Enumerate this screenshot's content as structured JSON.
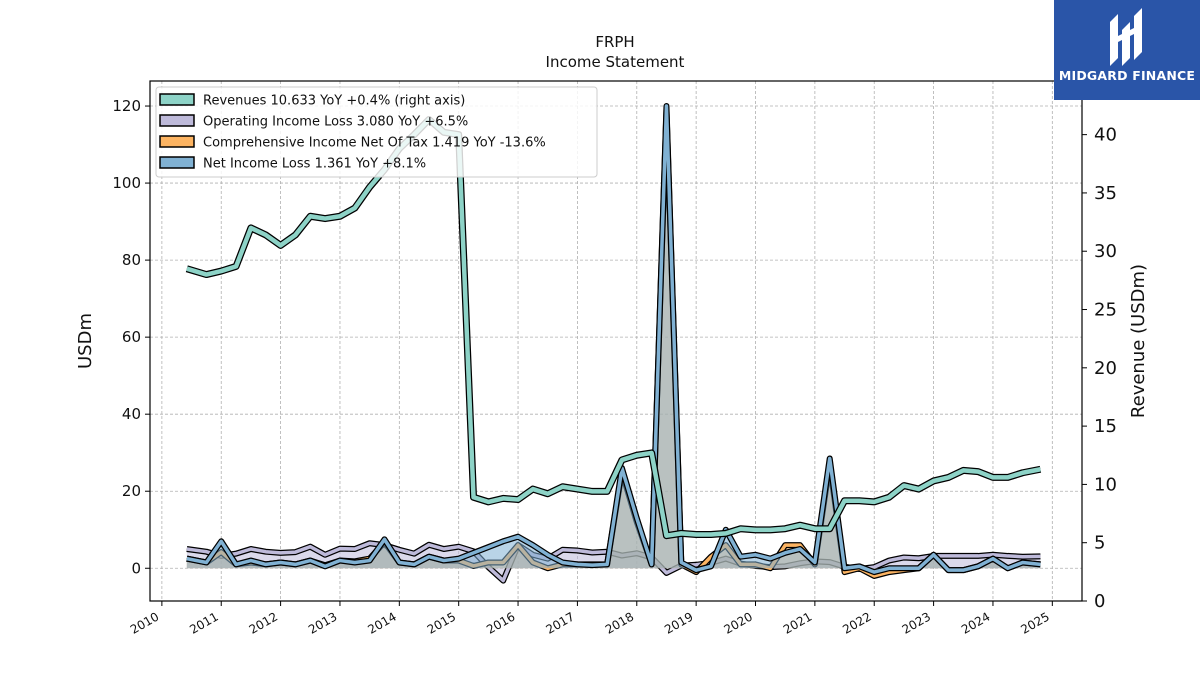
{
  "chart_data": {
    "type": "line",
    "title": "FRPH",
    "subtitle": "Income Statement",
    "ylabel": "USDm",
    "ylabel_right": "Revenue (USDm)",
    "ylim": [
      -8.5,
      126.5
    ],
    "ylim_right": [
      0,
      44.6
    ],
    "y_ticks": [
      0,
      20,
      40,
      60,
      80,
      100,
      120
    ],
    "y_ticks_right": [
      0,
      5,
      10,
      15,
      20,
      25,
      30,
      35,
      40
    ],
    "x_ticks": [
      "2010",
      "2011",
      "2012",
      "2013",
      "2014",
      "2015",
      "2016",
      "2017",
      "2018",
      "2019",
      "2020",
      "2021",
      "2022",
      "2023",
      "2024",
      "2025"
    ],
    "x_range": [
      2009.8,
      2025.5
    ],
    "grid": true,
    "legend_position": "top-left",
    "series": [
      {
        "name": "Revenues",
        "legend_label": "Revenues  10.633 YoY +0.4% (right axis)",
        "axis": "right",
        "color": "#8dd3c7",
        "kind": "line",
        "x": [
          2010.42,
          2010.75,
          2011.0,
          2011.25,
          2011.5,
          2011.75,
          2012.0,
          2012.25,
          2012.5,
          2012.75,
          2013.0,
          2013.25,
          2013.5,
          2013.75,
          2014.0,
          2014.25,
          2014.5,
          2014.75,
          2015.0,
          2015.25,
          2015.5,
          2015.75,
          2016.0,
          2016.25,
          2016.5,
          2016.75,
          2017.0,
          2017.25,
          2017.5,
          2017.75,
          2018.0,
          2018.25,
          2018.5,
          2018.75,
          2019.0,
          2019.25,
          2019.5,
          2019.75,
          2020.0,
          2020.25,
          2020.5,
          2020.75,
          2021.0,
          2021.25,
          2021.5,
          2021.75,
          2022.0,
          2022.25,
          2022.5,
          2022.75,
          2023.0,
          2023.25,
          2023.5,
          2023.75,
          2024.0,
          2024.25,
          2024.5,
          2024.8
        ],
        "values": [
          28.5,
          28.0,
          28.3,
          28.7,
          32.0,
          31.4,
          30.5,
          31.4,
          33.0,
          32.8,
          33.0,
          33.7,
          35.5,
          37.0,
          38.8,
          40.0,
          41.3,
          40.2,
          40.0,
          8.9,
          8.5,
          8.8,
          8.7,
          9.6,
          9.2,
          9.8,
          9.6,
          9.4,
          9.4,
          12.1,
          12.5,
          12.7,
          5.6,
          5.8,
          5.7,
          5.7,
          5.8,
          6.2,
          6.1,
          6.1,
          6.2,
          6.5,
          6.2,
          6.2,
          8.6,
          8.6,
          8.5,
          8.9,
          9.9,
          9.6,
          10.3,
          10.6,
          11.2,
          11.1,
          10.6,
          10.6,
          11.0,
          11.3
        ]
      },
      {
        "name": "Operating Income Loss",
        "legend_label": "Operating Income Loss  3.080 YoY +6.5%",
        "axis": "left",
        "color": "#bebada",
        "kind": "band",
        "x": [
          2010.42,
          2010.75,
          2011.0,
          2011.25,
          2011.5,
          2011.75,
          2012.0,
          2012.25,
          2012.5,
          2012.75,
          2013.0,
          2013.25,
          2013.5,
          2013.75,
          2014.0,
          2014.25,
          2014.5,
          2014.75,
          2015.0,
          2015.25,
          2015.5,
          2015.75,
          2016.0,
          2016.25,
          2016.5,
          2016.75,
          2017.0,
          2017.25,
          2017.5,
          2017.75,
          2018.0,
          2018.25,
          2018.5,
          2018.75,
          2019.0,
          2019.25,
          2019.5,
          2019.75,
          2020.0,
          2020.25,
          2020.5,
          2020.75,
          2021.0,
          2021.25,
          2021.5,
          2021.75,
          2022.0,
          2022.25,
          2022.5,
          2022.75,
          2023.0,
          2023.25,
          2023.5,
          2023.75,
          2024.0,
          2024.25,
          2024.5,
          2024.8
        ],
        "values": [
          5.0,
          4.3,
          3.2,
          3.8,
          5.0,
          4.3,
          4.0,
          4.2,
          5.6,
          3.5,
          5.1,
          5.0,
          6.5,
          6.0,
          4.8,
          3.8,
          6.1,
          5.0,
          5.6,
          4.4,
          0.3,
          -3.2,
          6.0,
          3.5,
          2.5,
          4.8,
          4.6,
          4.1,
          4.3,
          3.3,
          3.9,
          2.8,
          -1.2,
          0.7,
          0.9,
          1.4,
          2.5,
          1.2,
          0.6,
          0.3,
          0.5,
          1.3,
          1.8,
          1.6,
          0.4,
          -0.2,
          0.3,
          2.0,
          2.8,
          2.6,
          3.2,
          3.2,
          3.2,
          3.2,
          3.5,
          3.2,
          3.0,
          3.1
        ]
      },
      {
        "name": "Comprehensive Income Net Of Tax",
        "legend_label": "Comprehensive Income Net Of Tax  1.419 YoY -13.6%",
        "axis": "left",
        "color": "#fdb462",
        "kind": "band",
        "x": [
          2010.42,
          2010.75,
          2011.0,
          2011.25,
          2011.5,
          2011.75,
          2012.0,
          2012.25,
          2012.5,
          2012.75,
          2013.0,
          2013.25,
          2013.5,
          2013.75,
          2014.0,
          2014.25,
          2014.5,
          2014.75,
          2015.0,
          2015.25,
          2015.5,
          2015.75,
          2016.0,
          2016.25,
          2016.5,
          2016.75,
          2017.0,
          2017.25,
          2017.5,
          2017.75,
          2018.0,
          2018.25,
          2018.5,
          2018.75,
          2019.0,
          2019.25,
          2019.5,
          2019.75,
          2020.0,
          2020.25,
          2020.5,
          2020.75,
          2021.0,
          2021.25,
          2021.5,
          2021.75,
          2022.0,
          2022.25,
          2022.5,
          2022.75,
          2023.0,
          2023.25,
          2023.5,
          2023.75,
          2024.0,
          2024.25,
          2024.5,
          2024.8
        ],
        "values": [
          2.5,
          1.5,
          4.2,
          1.0,
          1.5,
          1.0,
          1.5,
          1.0,
          2.0,
          0.8,
          2.0,
          1.8,
          2.5,
          6.8,
          1.5,
          1.0,
          3.0,
          2.0,
          2.0,
          0.6,
          1.5,
          1.5,
          6.0,
          1.5,
          0.0,
          1.0,
          1.0,
          1.0,
          1.0,
          25.0,
          12.0,
          1.0,
          119.0,
          1.0,
          -1.0,
          3.0,
          6.0,
          1.0,
          1.0,
          0.0,
          6.0,
          6.0,
          1.0,
          27.0,
          -1.0,
          0.0,
          -2.0,
          -1.0,
          -0.5,
          0.0,
          3.5,
          -0.5,
          -0.5,
          0.5,
          2.5,
          0.0,
          1.5,
          1.0
        ]
      },
      {
        "name": "Net Income Loss",
        "legend_label": "Net Income Loss  1.361 YoY +8.1%",
        "axis": "left",
        "color": "#80b1d3",
        "kind": "band",
        "x": [
          2010.42,
          2010.75,
          2011.0,
          2011.25,
          2011.5,
          2011.75,
          2012.0,
          2012.25,
          2012.5,
          2012.75,
          2013.0,
          2013.25,
          2013.5,
          2013.75,
          2014.0,
          2014.25,
          2014.5,
          2014.75,
          2015.0,
          2015.25,
          2015.5,
          2015.75,
          2016.0,
          2016.25,
          2016.5,
          2016.75,
          2017.0,
          2017.25,
          2017.5,
          2017.75,
          2018.0,
          2018.25,
          2018.5,
          2018.75,
          2019.0,
          2019.25,
          2019.5,
          2019.75,
          2020.0,
          2020.25,
          2020.5,
          2020.75,
          2021.0,
          2021.25,
          2021.5,
          2021.75,
          2022.0,
          2022.25,
          2022.5,
          2022.75,
          2023.0,
          2023.25,
          2023.5,
          2023.75,
          2024.0,
          2024.25,
          2024.5,
          2024.8
        ],
        "values": [
          2.5,
          1.5,
          7.0,
          1.0,
          2.0,
          1.0,
          1.5,
          1.0,
          2.0,
          0.5,
          2.0,
          1.5,
          2.0,
          7.5,
          1.5,
          1.0,
          3.0,
          2.0,
          2.5,
          4.0,
          5.5,
          7.0,
          8.2,
          6.0,
          3.5,
          1.5,
          1.0,
          0.8,
          1.0,
          26.0,
          13.0,
          1.0,
          120.0,
          1.5,
          -0.5,
          0.5,
          10.0,
          3.0,
          3.5,
          2.5,
          4.0,
          5.0,
          1.5,
          28.5,
          0.0,
          0.5,
          -1.0,
          0.0,
          0.0,
          0.0,
          3.5,
          -0.5,
          -0.5,
          0.5,
          2.5,
          0.0,
          1.5,
          1.0
        ]
      }
    ]
  },
  "logo": {
    "text": "MIDGARD FINANCE"
  }
}
